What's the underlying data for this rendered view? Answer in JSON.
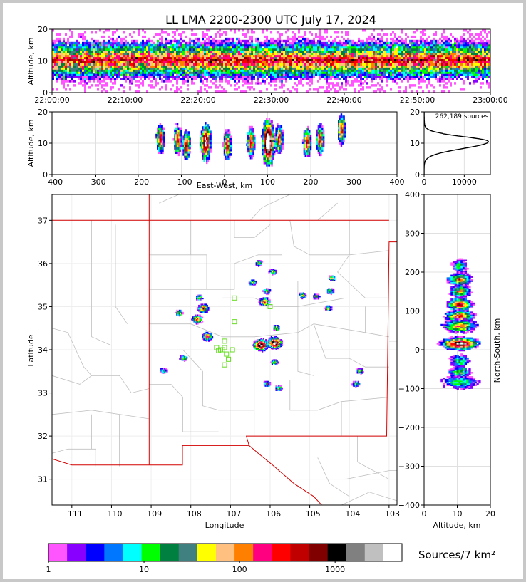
{
  "figure": {
    "title": "LL LMA 2200-2300 UTC July 17, 2024",
    "source_count_label": "262,189 sources",
    "colorbar_units": "Sources/7 km²"
  },
  "colors": {
    "state_border": "#d40000",
    "county_lines": "#c0c0c0",
    "stations": "#66dd22",
    "colorscale": [
      "#ff55ff",
      "#8800ff",
      "#0000ff",
      "#0077ff",
      "#00ffff",
      "#00ff00",
      "#008040",
      "#408080",
      "#ffff00",
      "#ffc080",
      "#ff8000",
      "#ff0080",
      "#ff0000",
      "#c00000",
      "#800000",
      "#000000",
      "#808080",
      "#c0c0c0",
      "#ffffff"
    ]
  },
  "chart_data": [
    {
      "type": "heatmap",
      "panel": "altitude-time",
      "ylabel": "Altitude, km",
      "xlim": [
        "22:00:00",
        "23:00:00"
      ],
      "ylim": [
        0,
        20
      ],
      "xticks": [
        "22:00:00",
        "22:10:00",
        "22:20:00",
        "22:30:00",
        "22:40:00",
        "22:50:00",
        "23:00:00"
      ],
      "yticks": [
        0,
        10,
        20
      ],
      "core_altitude_km": 10
    },
    {
      "type": "heatmap",
      "panel": "east-west-altitude",
      "xlabel": "East-West, km",
      "ylabel": "Altitude, km",
      "xlim": [
        -400,
        400
      ],
      "ylim": [
        0,
        20
      ],
      "xticks": [
        -400,
        -300,
        -200,
        -100,
        0,
        100,
        200,
        300,
        400
      ],
      "yticks": [
        0,
        10,
        20
      ],
      "clusters": [
        {
          "x": -150,
          "z": 11
        },
        {
          "x": -110,
          "z": 11
        },
        {
          "x": -90,
          "z": 9
        },
        {
          "x": -45,
          "z": 10
        },
        {
          "x": 5,
          "z": 9
        },
        {
          "x": 60,
          "z": 10
        },
        {
          "x": 100,
          "z": 10
        },
        {
          "x": 125,
          "z": 11
        },
        {
          "x": 190,
          "z": 10
        },
        {
          "x": 220,
          "z": 11
        },
        {
          "x": 270,
          "z": 14
        }
      ]
    },
    {
      "type": "line",
      "panel": "altitude-histogram",
      "xlim": [
        0,
        16500
      ],
      "ylim": [
        0,
        20
      ],
      "xticks": [
        0,
        10000
      ],
      "yticks": [
        0,
        10,
        20
      ],
      "peak_altitude_km": 10.5,
      "peak_count": 16000
    },
    {
      "type": "heatmap",
      "panel": "plan-view",
      "xlabel": "Longitude",
      "ylabel": "Latitude",
      "xlim": [
        -111.5,
        -102.8
      ],
      "ylim": [
        30.4,
        37.6
      ],
      "xticks": [
        -111,
        -110,
        -109,
        -108,
        -107,
        -106,
        -105,
        -104,
        -103
      ],
      "yticks": [
        31,
        32,
        33,
        34,
        35,
        36,
        37
      ],
      "cells": [
        {
          "lon": -107.7,
          "lat": 34.95
        },
        {
          "lon": -107.85,
          "lat": 34.7
        },
        {
          "lon": -107.6,
          "lat": 34.3
        },
        {
          "lon": -106.25,
          "lat": 34.1
        },
        {
          "lon": -105.9,
          "lat": 34.15
        },
        {
          "lon": -105.85,
          "lat": 34.5
        },
        {
          "lon": -106.15,
          "lat": 35.1
        },
        {
          "lon": -106.45,
          "lat": 35.55
        },
        {
          "lon": -106.1,
          "lat": 35.35
        },
        {
          "lon": -105.95,
          "lat": 35.8
        },
        {
          "lon": -106.3,
          "lat": 36.0
        },
        {
          "lon": -105.2,
          "lat": 35.25
        },
        {
          "lon": -104.85,
          "lat": 35.22
        },
        {
          "lon": -104.55,
          "lat": 34.95
        },
        {
          "lon": -104.5,
          "lat": 35.35
        },
        {
          "lon": -104.45,
          "lat": 35.65
        },
        {
          "lon": -108.7,
          "lat": 33.5
        },
        {
          "lon": -108.2,
          "lat": 33.8
        },
        {
          "lon": -108.3,
          "lat": 34.85
        },
        {
          "lon": -106.1,
          "lat": 33.2
        },
        {
          "lon": -105.8,
          "lat": 33.1
        },
        {
          "lon": -105.9,
          "lat": 33.7
        },
        {
          "lon": -103.85,
          "lat": 33.2
        },
        {
          "lon": -103.75,
          "lat": 33.5
        },
        {
          "lon": -107.8,
          "lat": 35.2
        }
      ],
      "stations": [
        {
          "lon": -106.9,
          "lat": 35.2
        },
        {
          "lon": -106.0,
          "lat": 35.0
        },
        {
          "lon": -106.9,
          "lat": 34.65
        },
        {
          "lon": -107.35,
          "lat": 34.05
        },
        {
          "lon": -107.25,
          "lat": 34.0
        },
        {
          "lon": -107.15,
          "lat": 34.2
        },
        {
          "lon": -107.15,
          "lat": 34.05
        },
        {
          "lon": -107.2,
          "lat": 34.0
        },
        {
          "lon": -106.95,
          "lat": 34.0
        },
        {
          "lon": -107.1,
          "lat": 33.9
        },
        {
          "lon": -107.05,
          "lat": 33.78
        },
        {
          "lon": -107.15,
          "lat": 33.65
        },
        {
          "lon": -107.3,
          "lat": 33.98
        }
      ]
    },
    {
      "type": "heatmap",
      "panel": "altitude-north-south",
      "xlabel": "Altitude, km",
      "ylabel": "North-South, km",
      "xlim": [
        0,
        20
      ],
      "ylim": [
        -400,
        400
      ],
      "xticks": [
        0,
        10,
        20
      ],
      "yticks": [
        -400,
        -300,
        -200,
        -100,
        0,
        100,
        200,
        300,
        400
      ]
    },
    {
      "type": "colorbar",
      "ticks": [
        "1",
        "10",
        "100",
        "1000"
      ]
    }
  ]
}
